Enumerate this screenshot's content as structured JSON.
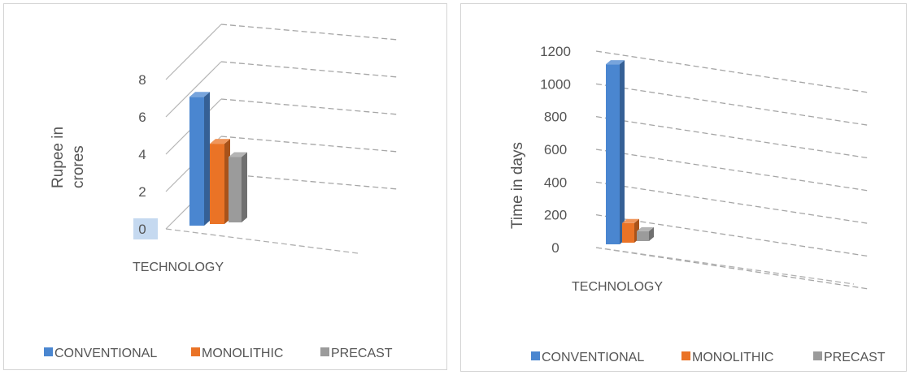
{
  "chart_data": [
    {
      "type": "bar",
      "title": "",
      "ylabel": "Rupee in crores",
      "ylabel_lines": [
        "Rupee in",
        "crores"
      ],
      "xlabel": "",
      "categories": [
        "TECHNOLOGY"
      ],
      "series": [
        {
          "name": "CONVENTIONAL",
          "values": [
            6.9
          ],
          "color": "#4a86d0"
        },
        {
          "name": "MONOLITHIC",
          "values": [
            4.3
          ],
          "color": "#ea7326"
        },
        {
          "name": "PRECAST",
          "values": [
            3.5
          ],
          "color": "#9b9b9b"
        }
      ],
      "ylim": [
        0,
        8
      ],
      "yticks": [
        "0",
        "2",
        "4",
        "6",
        "8"
      ],
      "grid": true,
      "legend": "bottom"
    },
    {
      "type": "bar",
      "title": "",
      "ylabel": "Time in days",
      "xlabel": "",
      "categories": [
        "TECHNOLOGY"
      ],
      "series": [
        {
          "name": "CONVENTIONAL",
          "values": [
            1100
          ],
          "color": "#4a86d0"
        },
        {
          "name": "MONOLITHIC",
          "values": [
            120
          ],
          "color": "#ea7326"
        },
        {
          "name": "PRECAST",
          "values": [
            60
          ],
          "color": "#9b9b9b"
        }
      ],
      "ylim": [
        0,
        1200
      ],
      "yticks": [
        "0",
        "200",
        "400",
        "600",
        "800",
        "1000",
        "1200"
      ],
      "grid": true,
      "legend": "bottom"
    }
  ]
}
